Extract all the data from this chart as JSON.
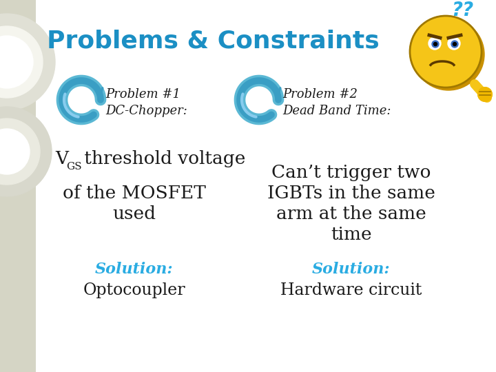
{
  "title": "Problems & Constraints",
  "title_color": "#1B8FC4",
  "title_fontsize": 26,
  "bg_color": "#EEEEE6",
  "left_strip_color": "#D5D5C5",
  "problem1_label": "Problem #1",
  "problem1_sub": "DC-Chopper:",
  "problem2_label": "Problem #2",
  "problem2_sub": "Dead Band Time:",
  "desc1_line2": "of the MOSFET",
  "desc1_line3": "used",
  "desc2_line1": "Can’t trigger two",
  "desc2_line2": "IGBTs in the same",
  "desc2_line3": "arm at the same",
  "desc2_line4": "time",
  "sol1_label": "Solution:",
  "sol1_text": "Optocoupler",
  "sol2_label": "Solution:",
  "sol2_text": "Hardware circuit",
  "solution_color": "#2AACE2",
  "text_color": "#1a1a1a",
  "arrow_color": "#3399CC",
  "white_bg": "#FFFFFF"
}
